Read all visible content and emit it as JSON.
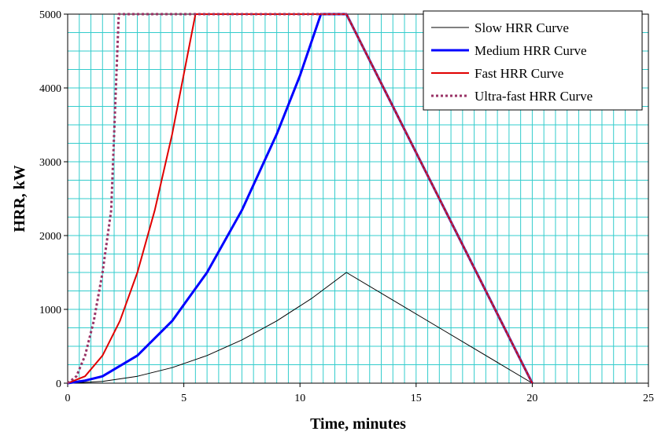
{
  "chart_data": {
    "type": "line",
    "xlabel": "Time, minutes",
    "ylabel": "HRR, kW",
    "xlim": [
      0,
      25
    ],
    "ylim": [
      0,
      5000
    ],
    "x_ticks": [
      "0",
      "5",
      "10",
      "15",
      "20",
      "25"
    ],
    "y_ticks": [
      "0",
      "1000",
      "2000",
      "3000",
      "4000",
      "5000"
    ],
    "grid": true,
    "grid_minor_x_step": 0.5,
    "grid_minor_y_step": 250,
    "grid_color": "#33cccc",
    "legend_position": "top-right",
    "series": [
      {
        "name": "Slow HRR Curve",
        "color": "#000000",
        "style": "solid",
        "x": [
          0,
          1.5,
          3,
          4.5,
          6,
          7.5,
          9,
          10.5,
          12,
          16,
          20
        ],
        "y": [
          0,
          23,
          94,
          211,
          375,
          586,
          844,
          1148,
          1500,
          750,
          0
        ]
      },
      {
        "name": "Medium HRR Curve",
        "color": "#0000ff",
        "style": "solid",
        "x": [
          0,
          0.75,
          1.5,
          3,
          4.5,
          6,
          7.5,
          9,
          10,
          10.9,
          12,
          16,
          20
        ],
        "y": [
          0,
          35,
          94,
          375,
          844,
          1500,
          2344,
          3375,
          4167,
          5000,
          5000,
          2500,
          0
        ]
      },
      {
        "name": "Fast HRR Curve",
        "color": "#e00000",
        "style": "solid",
        "x": [
          0,
          0.75,
          1.5,
          2.25,
          3,
          3.75,
          4.5,
          5.5,
          12,
          16,
          20
        ],
        "y": [
          0,
          94,
          375,
          844,
          1500,
          2344,
          3375,
          5000,
          5000,
          2500,
          0
        ]
      },
      {
        "name": "Ultra-fast HRR Curve",
        "color": "#993366",
        "style": "dotted",
        "x": [
          0,
          0.375,
          0.75,
          1.125,
          1.5,
          1.875,
          2.2,
          12,
          16,
          20
        ],
        "y": [
          0,
          94,
          375,
          844,
          1500,
          2344,
          5000,
          5000,
          2500,
          0
        ]
      }
    ]
  }
}
